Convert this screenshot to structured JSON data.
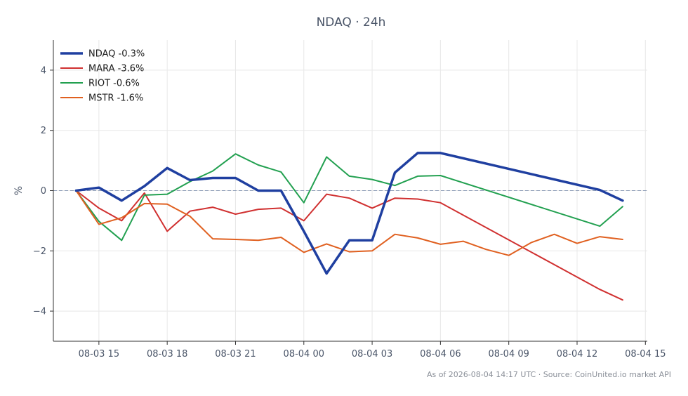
{
  "chart_data": {
    "type": "line",
    "title": "NDAQ · 24h",
    "xlabel": "",
    "ylabel": "%",
    "xlim": [
      "2026-08-03 13:00",
      "2026-08-04 15:05"
    ],
    "ylim": [
      -5,
      5
    ],
    "x_ticks": [
      "08-03 15",
      "08-03 18",
      "08-03 21",
      "08-04 00",
      "08-04 03",
      "08-04 06",
      "08-04 09",
      "08-04 12",
      "08-04 15"
    ],
    "x_tick_values": [
      "2026-08-03 15:00",
      "2026-08-03 18:00",
      "2026-08-03 21:00",
      "2026-08-04 00:00",
      "2026-08-04 03:00",
      "2026-08-04 06:00",
      "2026-08-04 09:00",
      "2026-08-04 12:00",
      "2026-08-04 15:00"
    ],
    "y_ticks": [
      -4,
      -2,
      0,
      2,
      4
    ],
    "y_tick_labels": [
      "−4",
      "−2",
      "0",
      "2",
      "4"
    ],
    "grid": true,
    "baseline": 0,
    "legend_position": "top-left",
    "series": [
      {
        "name": "NDAQ -0.3%",
        "color": "#1f3fa0",
        "emphasis": true,
        "x": [
          "2026-08-03 14:00",
          "2026-08-03 15:00",
          "2026-08-03 16:00",
          "2026-08-03 17:00",
          "2026-08-03 18:00",
          "2026-08-03 19:00",
          "2026-08-03 20:00",
          "2026-08-03 21:00",
          "2026-08-03 22:00",
          "2026-08-03 23:00",
          "2026-08-04 00:00",
          "2026-08-04 01:00",
          "2026-08-04 02:00",
          "2026-08-04 03:00",
          "2026-08-04 04:00",
          "2026-08-04 05:00",
          "2026-08-04 06:00",
          "2026-08-04 13:00",
          "2026-08-04 14:00"
        ],
        "values": [
          0.0,
          0.1,
          -0.33,
          0.15,
          0.75,
          0.35,
          0.42,
          0.42,
          0.0,
          0.0,
          -1.35,
          -2.75,
          -1.65,
          -1.65,
          0.6,
          1.25,
          1.25,
          0.02,
          -0.33
        ]
      },
      {
        "name": "MARA -3.6%",
        "color": "#d03030",
        "emphasis": false,
        "x": [
          "2026-08-03 14:00",
          "2026-08-03 15:00",
          "2026-08-03 16:00",
          "2026-08-03 17:00",
          "2026-08-03 18:00",
          "2026-08-03 19:00",
          "2026-08-03 20:00",
          "2026-08-03 21:00",
          "2026-08-03 22:00",
          "2026-08-03 23:00",
          "2026-08-04 00:00",
          "2026-08-04 01:00",
          "2026-08-04 02:00",
          "2026-08-04 03:00",
          "2026-08-04 04:00",
          "2026-08-04 05:00",
          "2026-08-04 06:00",
          "2026-08-04 13:00",
          "2026-08-04 14:00"
        ],
        "values": [
          0.0,
          -0.58,
          -1.0,
          -0.08,
          -1.35,
          -0.68,
          -0.55,
          -0.78,
          -0.62,
          -0.58,
          -1.0,
          -0.12,
          -0.25,
          -0.58,
          -0.25,
          -0.28,
          -0.4,
          -3.28,
          -3.63
        ]
      },
      {
        "name": "RIOT -0.6%",
        "color": "#22a050",
        "emphasis": false,
        "x": [
          "2026-08-03 14:00",
          "2026-08-03 15:00",
          "2026-08-03 16:00",
          "2026-08-03 17:00",
          "2026-08-03 18:00",
          "2026-08-03 19:00",
          "2026-08-03 20:00",
          "2026-08-03 21:00",
          "2026-08-03 22:00",
          "2026-08-03 23:00",
          "2026-08-04 00:00",
          "2026-08-04 01:00",
          "2026-08-04 02:00",
          "2026-08-04 03:00",
          "2026-08-04 04:00",
          "2026-08-04 05:00",
          "2026-08-04 06:00",
          "2026-08-04 13:00",
          "2026-08-04 14:00"
        ],
        "values": [
          0.0,
          -1.02,
          -1.65,
          -0.15,
          -0.12,
          0.3,
          0.65,
          1.22,
          0.85,
          0.62,
          -0.4,
          1.12,
          0.48,
          0.37,
          0.17,
          0.48,
          0.5,
          -1.18,
          -0.53
        ]
      },
      {
        "name": "MSTR -1.6%",
        "color": "#e06020",
        "emphasis": false,
        "x": [
          "2026-08-03 14:00",
          "2026-08-03 15:00",
          "2026-08-03 16:00",
          "2026-08-03 17:00",
          "2026-08-03 18:00",
          "2026-08-03 19:00",
          "2026-08-03 20:00",
          "2026-08-03 21:00",
          "2026-08-03 22:00",
          "2026-08-03 23:00",
          "2026-08-04 00:00",
          "2026-08-04 01:00",
          "2026-08-04 02:00",
          "2026-08-04 03:00",
          "2026-08-04 04:00",
          "2026-08-04 05:00",
          "2026-08-04 06:00",
          "2026-08-04 07:00",
          "2026-08-04 08:00",
          "2026-08-04 09:00",
          "2026-08-04 10:00",
          "2026-08-04 11:00",
          "2026-08-04 12:00",
          "2026-08-04 13:00",
          "2026-08-04 14:00"
        ],
        "values": [
          0.0,
          -1.12,
          -0.9,
          -0.43,
          -0.45,
          -0.85,
          -1.6,
          -1.62,
          -1.65,
          -1.55,
          -2.05,
          -1.77,
          -2.03,
          -2.0,
          -1.45,
          -1.57,
          -1.78,
          -1.68,
          -1.95,
          -2.15,
          -1.72,
          -1.45,
          -1.75,
          -1.53,
          -1.62
        ]
      }
    ]
  },
  "footer": "As of 2026-08-04 14:17 UTC · Source: CoinUnited.io market API"
}
